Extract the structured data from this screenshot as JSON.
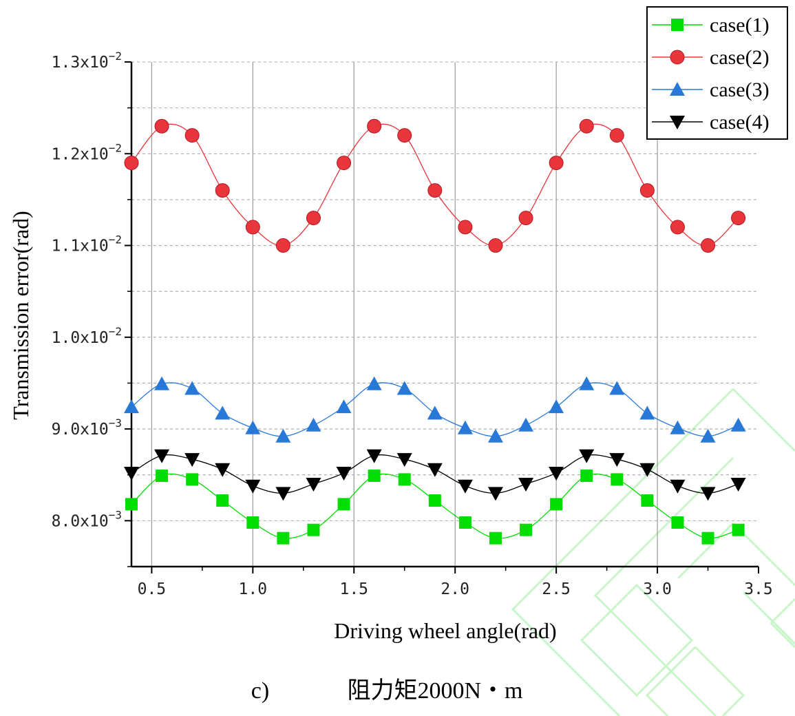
{
  "caption": {
    "label": "c)",
    "text": "阻力矩2000N・m"
  },
  "chart_data": {
    "type": "line",
    "xlabel": "Driving wheel angle(rad)",
    "ylabel": "Transmission error(rad)",
    "xlim": [
      0.4,
      3.5
    ],
    "ylim": [
      0.0075,
      0.013
    ],
    "x_ticks": [
      0.5,
      1.0,
      1.5,
      2.0,
      2.5,
      3.0,
      3.5
    ],
    "x_tick_labels": [
      "0.5",
      "1.0",
      "1.5",
      "2.0",
      "2.5",
      "3.0",
      "3.5"
    ],
    "y_ticks": [
      {
        "value": 0.008,
        "mantissa": "8.0x10",
        "exponent": "−3"
      },
      {
        "value": 0.009,
        "mantissa": "9.0x10",
        "exponent": "−3"
      },
      {
        "value": 0.01,
        "mantissa": "1.0x10",
        "exponent": "−2"
      },
      {
        "value": 0.011,
        "mantissa": "1.1x10",
        "exponent": "−2"
      },
      {
        "value": 0.012,
        "mantissa": "1.2x10",
        "exponent": "−2"
      },
      {
        "value": 0.013,
        "mantissa": "1.3x10",
        "exponent": "−2"
      }
    ],
    "grid": {
      "vertical": "solid",
      "horizontal": "dashed"
    },
    "legend_position": "top-right",
    "x": [
      0.4,
      0.55,
      0.7,
      0.85,
      1.0,
      1.15,
      1.3,
      1.45,
      1.6,
      1.75,
      1.9,
      2.05,
      2.2,
      2.35,
      2.5,
      2.65,
      2.8,
      2.95,
      3.1,
      3.25,
      3.4
    ],
    "series": [
      {
        "name": "case(1)",
        "color": "#00dd00",
        "marker": "square",
        "values": [
          0.00818,
          0.00849,
          0.00845,
          0.00822,
          0.00798,
          0.00781,
          0.0079,
          0.00818,
          0.00849,
          0.00845,
          0.00822,
          0.00798,
          0.00781,
          0.0079,
          0.00818,
          0.00849,
          0.00845,
          0.00822,
          0.00798,
          0.00781,
          0.0079
        ]
      },
      {
        "name": "case(2)",
        "color": "#e8363c",
        "marker": "circle",
        "values": [
          0.0119,
          0.0123,
          0.0122,
          0.0116,
          0.0112,
          0.011,
          0.0113,
          0.0119,
          0.0123,
          0.0122,
          0.0116,
          0.0112,
          0.011,
          0.0113,
          0.0119,
          0.0123,
          0.0122,
          0.0116,
          0.0112,
          0.011,
          0.0113
        ]
      },
      {
        "name": "case(3)",
        "color": "#2878d8",
        "marker": "triangle-up",
        "values": [
          0.00924,
          0.00949,
          0.00944,
          0.00917,
          0.00901,
          0.00892,
          0.00904,
          0.00924,
          0.00949,
          0.00944,
          0.00917,
          0.00901,
          0.00892,
          0.00904,
          0.00924,
          0.00949,
          0.00944,
          0.00917,
          0.00901,
          0.00892,
          0.00904
        ]
      },
      {
        "name": "case(4)",
        "color": "#000000",
        "marker": "triangle-down",
        "values": [
          0.00852,
          0.00871,
          0.00867,
          0.00856,
          0.00838,
          0.0083,
          0.0084,
          0.00852,
          0.00871,
          0.00867,
          0.00856,
          0.00838,
          0.0083,
          0.0084,
          0.00852,
          0.00871,
          0.00867,
          0.00856,
          0.00838,
          0.0083,
          0.0084
        ]
      }
    ]
  }
}
